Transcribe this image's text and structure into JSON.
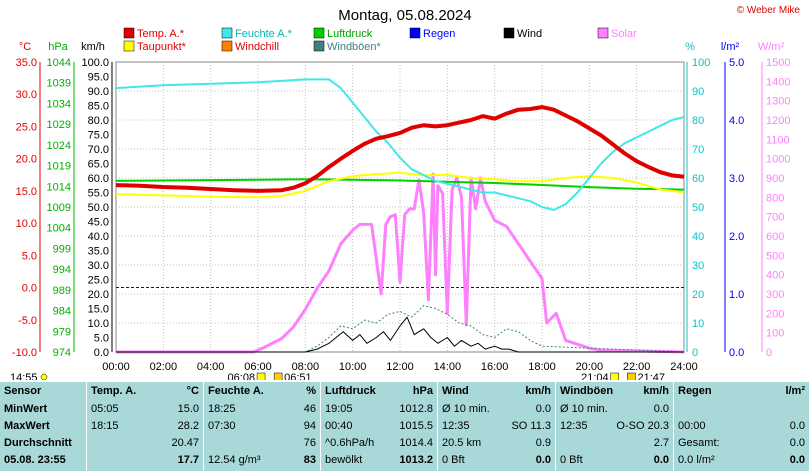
{
  "chart_data": {
    "type": "line",
    "title": "Montag, 05.08.2024",
    "credit": "© Weber Mike",
    "x_ticks": [
      "00:00",
      "02:00",
      "04:00",
      "06:00",
      "08:00",
      "10:00",
      "12:00",
      "14:00",
      "16:00",
      "18:00",
      "20:00",
      "22:00",
      "24:00"
    ],
    "axes": {
      "temp": {
        "unit": "°C",
        "ticks": [
          "35.0",
          "30.0",
          "25.0",
          "20.0",
          "15.0",
          "10.0",
          "5.0",
          "0.0",
          "-5.0",
          "-10.0"
        ],
        "range": [
          -10,
          35
        ],
        "color": "#e00000"
      },
      "pressure": {
        "unit": "hPa",
        "ticks": [
          "1044",
          "1039",
          "1034",
          "1029",
          "1024",
          "1019",
          "1014",
          "1009",
          "1004",
          "999",
          "994",
          "989",
          "984",
          "979",
          "974"
        ],
        "range": [
          974,
          1044
        ],
        "color": "#00b000"
      },
      "wind": {
        "unit": "km/h",
        "ticks": [
          "100.0",
          "95.0",
          "90.0",
          "85.0",
          "80.0",
          "75.0",
          "70.0",
          "65.0",
          "60.0",
          "55.0",
          "50.0",
          "45.0",
          "40.0",
          "35.0",
          "30.0",
          "25.0",
          "20.0",
          "15.0",
          "10.0",
          "5.0",
          "0.0"
        ],
        "range": [
          0,
          100
        ],
        "color": "#000000"
      },
      "humidity": {
        "unit": "%",
        "ticks": [
          "100",
          "90",
          "80",
          "70",
          "60",
          "50",
          "40",
          "30",
          "20",
          "10",
          "0"
        ],
        "range": [
          0,
          100
        ],
        "color": "#00c8c8"
      },
      "rain": {
        "unit": "l/m²",
        "ticks": [
          "5.0",
          "4.0",
          "3.0",
          "2.0",
          "1.0",
          "0.0"
        ],
        "range": [
          0,
          5
        ],
        "color": "#0000ff"
      },
      "solar": {
        "unit": "W/m²",
        "ticks": [
          "1500",
          "1400",
          "1300",
          "1200",
          "1100",
          "1000",
          "900",
          "800",
          "700",
          "600",
          "500",
          "400",
          "300",
          "200",
          "100",
          "0"
        ],
        "range": [
          0,
          1500
        ],
        "color": "#ff80ff"
      }
    },
    "legend": [
      {
        "name": "Temp. A.*",
        "color": "#e00000"
      },
      {
        "name": "Feuchte A.*",
        "color": "#40e8e8"
      },
      {
        "name": "Luftdruck",
        "color": "#00d000"
      },
      {
        "name": "Regen",
        "color": "#0000ff"
      },
      {
        "name": "Wind",
        "color": "#000000"
      },
      {
        "name": "Solar",
        "color": "#ff80ff"
      },
      {
        "name": "Taupunkt*",
        "color": "#ffff00"
      },
      {
        "name": "Windchill",
        "color": "#ff8000"
      },
      {
        "name": "Windböen*",
        "color": "#408080"
      }
    ],
    "series": [
      {
        "name": "Temp. A.*",
        "axis": "temp",
        "color": "#e00000",
        "x": [
          0,
          1,
          2,
          3,
          4,
          5,
          6,
          7,
          7.5,
          8,
          8.5,
          9,
          9.5,
          10,
          10.5,
          11,
          11.5,
          12,
          12.5,
          13,
          13.5,
          14,
          14.5,
          15,
          15.5,
          16,
          16.5,
          17,
          17.5,
          18,
          18.5,
          19,
          19.5,
          20,
          20.5,
          21,
          21.5,
          22,
          22.5,
          23,
          23.5,
          24
        ],
        "y": [
          15.9,
          15.8,
          15.6,
          15.5,
          15.3,
          15.1,
          15.0,
          15.1,
          15.5,
          16.2,
          17.3,
          18.7,
          20.0,
          21.2,
          22.3,
          23.1,
          23.5,
          24.0,
          24.8,
          25.2,
          25.0,
          25.2,
          25.6,
          26.0,
          26.6,
          26.2,
          27.0,
          27.6,
          27.7,
          28.0,
          27.6,
          26.7,
          25.8,
          24.7,
          23.6,
          22.2,
          20.8,
          19.6,
          18.7,
          17.9,
          17.4,
          17.2
        ]
      },
      {
        "name": "Feuchte A.*",
        "axis": "humidity",
        "color": "#40e8e8",
        "x": [
          0,
          2,
          4,
          6,
          7,
          8,
          9,
          9.5,
          10,
          10.5,
          11,
          11.5,
          12,
          12.5,
          13,
          13.5,
          14,
          14.5,
          15,
          15.5,
          16,
          16.5,
          17,
          17.5,
          18,
          18.5,
          19,
          19.5,
          20,
          20.5,
          21,
          21.5,
          22,
          22.5,
          23,
          23.5,
          24
        ],
        "y": [
          91,
          92,
          92.5,
          93,
          93.5,
          94,
          94,
          91,
          86,
          81,
          76,
          72,
          67,
          63,
          61,
          59,
          58,
          57,
          56,
          55,
          55,
          54,
          53,
          52,
          50,
          49,
          51,
          55,
          60,
          65,
          69,
          72,
          74,
          76,
          78,
          80,
          81
        ]
      },
      {
        "name": "Taupunkt*",
        "axis": "temp",
        "color": "#ffff00",
        "x": [
          0,
          2,
          4,
          6,
          7,
          8,
          9,
          10,
          11,
          12,
          13,
          14,
          15,
          16,
          17,
          18,
          19,
          20,
          21,
          22,
          23,
          24
        ],
        "y": [
          14.5,
          14.3,
          14.1,
          14.0,
          14.2,
          15.0,
          16.5,
          17.3,
          17.6,
          17.8,
          17.4,
          17.5,
          17.0,
          16.8,
          16.5,
          16.5,
          17.0,
          17.3,
          17.0,
          16.3,
          15.2,
          14.8
        ]
      },
      {
        "name": "Luftdruck",
        "axis": "pressure",
        "color": "#00d000",
        "x": [
          0,
          2,
          4,
          6,
          8,
          10,
          12,
          14,
          16,
          18,
          20,
          22,
          24
        ],
        "y": [
          1015.3,
          1015.4,
          1015.5,
          1015.6,
          1015.7,
          1015.6,
          1015.4,
          1015.1,
          1014.8,
          1014.3,
          1013.8,
          1013.4,
          1013.2
        ]
      },
      {
        "name": "Solar",
        "axis": "solar",
        "color": "#ff80ff",
        "x": [
          0,
          5.8,
          6.2,
          7,
          7.5,
          8,
          8.5,
          9,
          9.5,
          10,
          10.3,
          10.8,
          11.2,
          11.4,
          11.6,
          11.8,
          12.0,
          12.2,
          12.4,
          12.6,
          12.8,
          13.0,
          13.2,
          13.4,
          13.5,
          13.6,
          13.8,
          14.0,
          14.2,
          14.4,
          14.6,
          14.8,
          15.0,
          15.2,
          15.4,
          15.6,
          16,
          16.5,
          17,
          17.5,
          18,
          18.2,
          18.6,
          19.0,
          19.5,
          20,
          20.4,
          24
        ],
        "y": [
          0,
          0,
          20,
          70,
          130,
          220,
          330,
          420,
          560,
          630,
          660,
          660,
          300,
          660,
          700,
          710,
          360,
          710,
          740,
          740,
          890,
          720,
          270,
          920,
          400,
          860,
          820,
          200,
          840,
          900,
          800,
          140,
          900,
          740,
          900,
          780,
          680,
          650,
          560,
          470,
          380,
          150,
          200,
          60,
          40,
          20,
          10,
          0
        ]
      },
      {
        "name": "Wind",
        "axis": "wind",
        "color": "#000000",
        "x": [
          0,
          8,
          8.5,
          9,
          9.3,
          9.6,
          10,
          10.3,
          10.6,
          11,
          11.3,
          11.6,
          12,
          12.3,
          12.6,
          13,
          13.3,
          13.6,
          14,
          14.3,
          14.6,
          15,
          15.3,
          15.6,
          16,
          16.3,
          16.6,
          17,
          18,
          24
        ],
        "y": [
          0,
          0,
          1,
          3,
          5,
          7,
          4,
          6,
          3,
          5,
          7,
          4,
          9,
          12,
          6,
          8,
          5,
          3,
          5,
          2,
          4,
          2,
          3,
          1,
          2,
          1,
          1,
          0,
          0,
          0
        ]
      },
      {
        "name": "Windböen*",
        "axis": "wind",
        "color": "#408080",
        "x": [
          0,
          8,
          8.5,
          9,
          9.5,
          10,
          10.5,
          11,
          11.5,
          12,
          12.5,
          13,
          13.5,
          14,
          14.5,
          15,
          15.5,
          16,
          16.5,
          17,
          17.5,
          18,
          24
        ],
        "y": [
          0,
          0,
          2,
          5,
          9,
          8,
          11,
          10,
          13,
          14,
          12,
          16,
          15,
          13,
          10,
          9,
          6,
          5,
          8,
          7,
          4,
          2,
          0
        ]
      }
    ],
    "sun_markers": [
      {
        "label": "06:08",
        "x": 6.13,
        "row": "lower-left"
      },
      {
        "label": "06:51",
        "x": 6.85,
        "row": "lower-right"
      },
      {
        "label": "21:04",
        "x": 21.07,
        "row": "lower-left"
      },
      {
        "label": "21:47",
        "x": 21.78,
        "row": "lower-right"
      }
    ],
    "left_time_label": "14:55"
  },
  "table": {
    "columns": [
      {
        "header": [
          "Sensor",
          ""
        ],
        "rows": [
          [
            "MinWert",
            ""
          ],
          [
            "MaxWert",
            ""
          ],
          [
            "Durchschnitt",
            ""
          ],
          [
            "05.08. 23:55",
            ""
          ]
        ]
      },
      {
        "header": [
          "Temp. A.",
          "°C"
        ],
        "rows": [
          [
            "05:05",
            "15.0"
          ],
          [
            "18:15",
            "28.2"
          ],
          [
            "",
            "20.47"
          ],
          [
            "",
            "17.7"
          ]
        ]
      },
      {
        "header": [
          "Feuchte A.",
          "%"
        ],
        "rows": [
          [
            "18:25",
            "46"
          ],
          [
            "07:30",
            "94"
          ],
          [
            "",
            "76"
          ],
          [
            "12.54 g/m³",
            "83"
          ]
        ]
      },
      {
        "header": [
          "Luftdruck",
          "hPa"
        ],
        "rows": [
          [
            "19:05",
            "1012.8"
          ],
          [
            "00:40",
            "1015.5"
          ],
          [
            "^0.6hPa/h",
            "1014.4"
          ],
          [
            "bewölkt",
            "1013.2"
          ]
        ]
      },
      {
        "header": [
          "Wind",
          "km/h"
        ],
        "rows": [
          [
            "Ø 10 min.",
            "0.0"
          ],
          [
            "12:35",
            "SO 11.3"
          ],
          [
            "20.5 km",
            "0.9"
          ],
          [
            "0 Bft",
            "0.0"
          ]
        ]
      },
      {
        "header": [
          "Windböen",
          "km/h"
        ],
        "rows": [
          [
            "Ø 10 min.",
            "0.0"
          ],
          [
            "12:35",
            "O-SO 20.3"
          ],
          [
            "",
            "2.7"
          ],
          [
            "0 Bft",
            "0.0"
          ]
        ]
      },
      {
        "header": [
          "Regen",
          "l/m²"
        ],
        "rows": [
          [
            "",
            ""
          ],
          [
            "00:00",
            "0.0"
          ],
          [
            "Gesamt:",
            "0.0"
          ],
          [
            "0.0 l/m²",
            "0.0"
          ]
        ]
      }
    ]
  }
}
